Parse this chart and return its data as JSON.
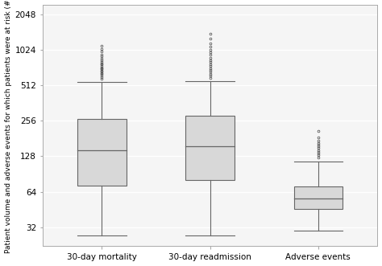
{
  "categories": [
    "30-day mortality",
    "30-day readmission",
    "Adverse events"
  ],
  "ylabel": "Patient volume and adverse events for which patients were at risk (#)",
  "background_color": "#ffffff",
  "plot_bg_color": "#f5f5f5",
  "box_facecolor": "#d8d8d8",
  "box_edgecolor": "#666666",
  "grid_color": "#ffffff",
  "yticks": [
    32,
    64,
    128,
    256,
    512,
    1024,
    2048
  ],
  "ylim_log": [
    22,
    2500
  ],
  "boxes": [
    {
      "whisker_low": 27,
      "q1": 72,
      "median": 145,
      "q3": 265,
      "whisker_high": 545,
      "outliers_high": [
        580,
        600,
        620,
        640,
        655,
        670,
        685,
        700,
        715,
        730,
        750,
        770,
        790,
        810,
        840,
        870,
        900,
        940,
        990,
        1050,
        1120
      ]
    },
    {
      "whisker_low": 27,
      "q1": 80,
      "median": 155,
      "q3": 285,
      "whisker_high": 555,
      "outliers_high": [
        595,
        620,
        645,
        670,
        695,
        720,
        750,
        780,
        810,
        845,
        885,
        930,
        980,
        1030,
        1090,
        1170,
        1280,
        1420
      ]
    },
    {
      "whisker_low": 30,
      "q1": 46,
      "median": 56,
      "q3": 71,
      "whisker_high": 115,
      "outliers_high": [
        125,
        130,
        135,
        140,
        145,
        150,
        155,
        160,
        167,
        175,
        185,
        210
      ]
    }
  ]
}
